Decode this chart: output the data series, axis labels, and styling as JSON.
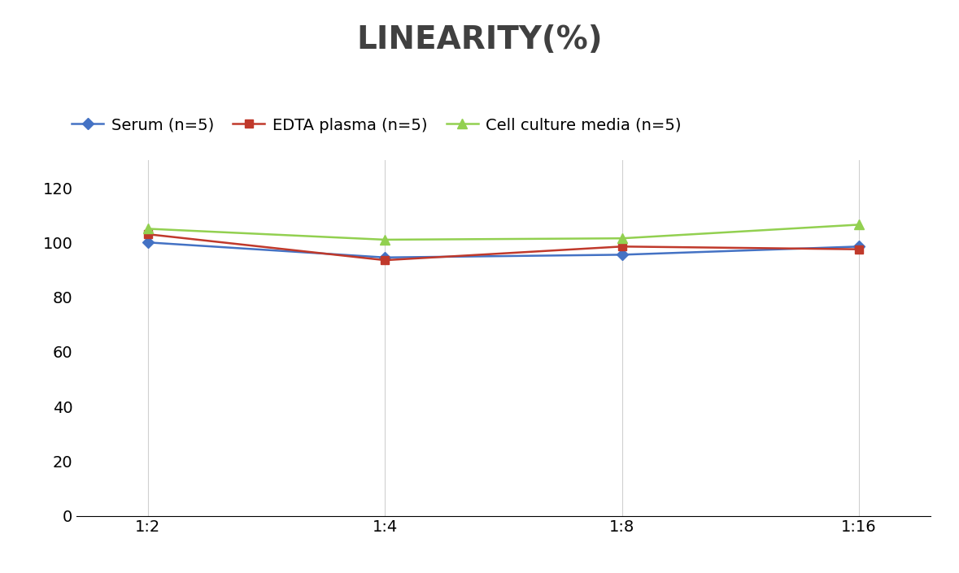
{
  "title": "LINEARITY(%)",
  "x_labels": [
    "1:2",
    "1:4",
    "1:8",
    "1:16"
  ],
  "x_positions": [
    0,
    1,
    2,
    3
  ],
  "series": [
    {
      "label": "Serum (n=5)",
      "values": [
        100,
        94.5,
        95.5,
        98.5
      ],
      "color": "#4472C4",
      "marker": "D",
      "marker_size": 7,
      "linewidth": 1.8
    },
    {
      "label": "EDTA plasma (n=5)",
      "values": [
        103,
        93.5,
        98.5,
        97.5
      ],
      "color": "#C0392B",
      "marker": "s",
      "marker_size": 7,
      "linewidth": 1.8
    },
    {
      "label": "Cell culture media (n=5)",
      "values": [
        105,
        101,
        101.5,
        106.5
      ],
      "color": "#92D050",
      "marker": "^",
      "marker_size": 8,
      "linewidth": 1.8
    }
  ],
  "ylim": [
    0,
    130
  ],
  "yticks": [
    0,
    20,
    40,
    60,
    80,
    100,
    120
  ],
  "grid_color": "#D0D0D0",
  "background_color": "#FFFFFF",
  "title_fontsize": 28,
  "tick_fontsize": 14,
  "legend_fontsize": 14
}
